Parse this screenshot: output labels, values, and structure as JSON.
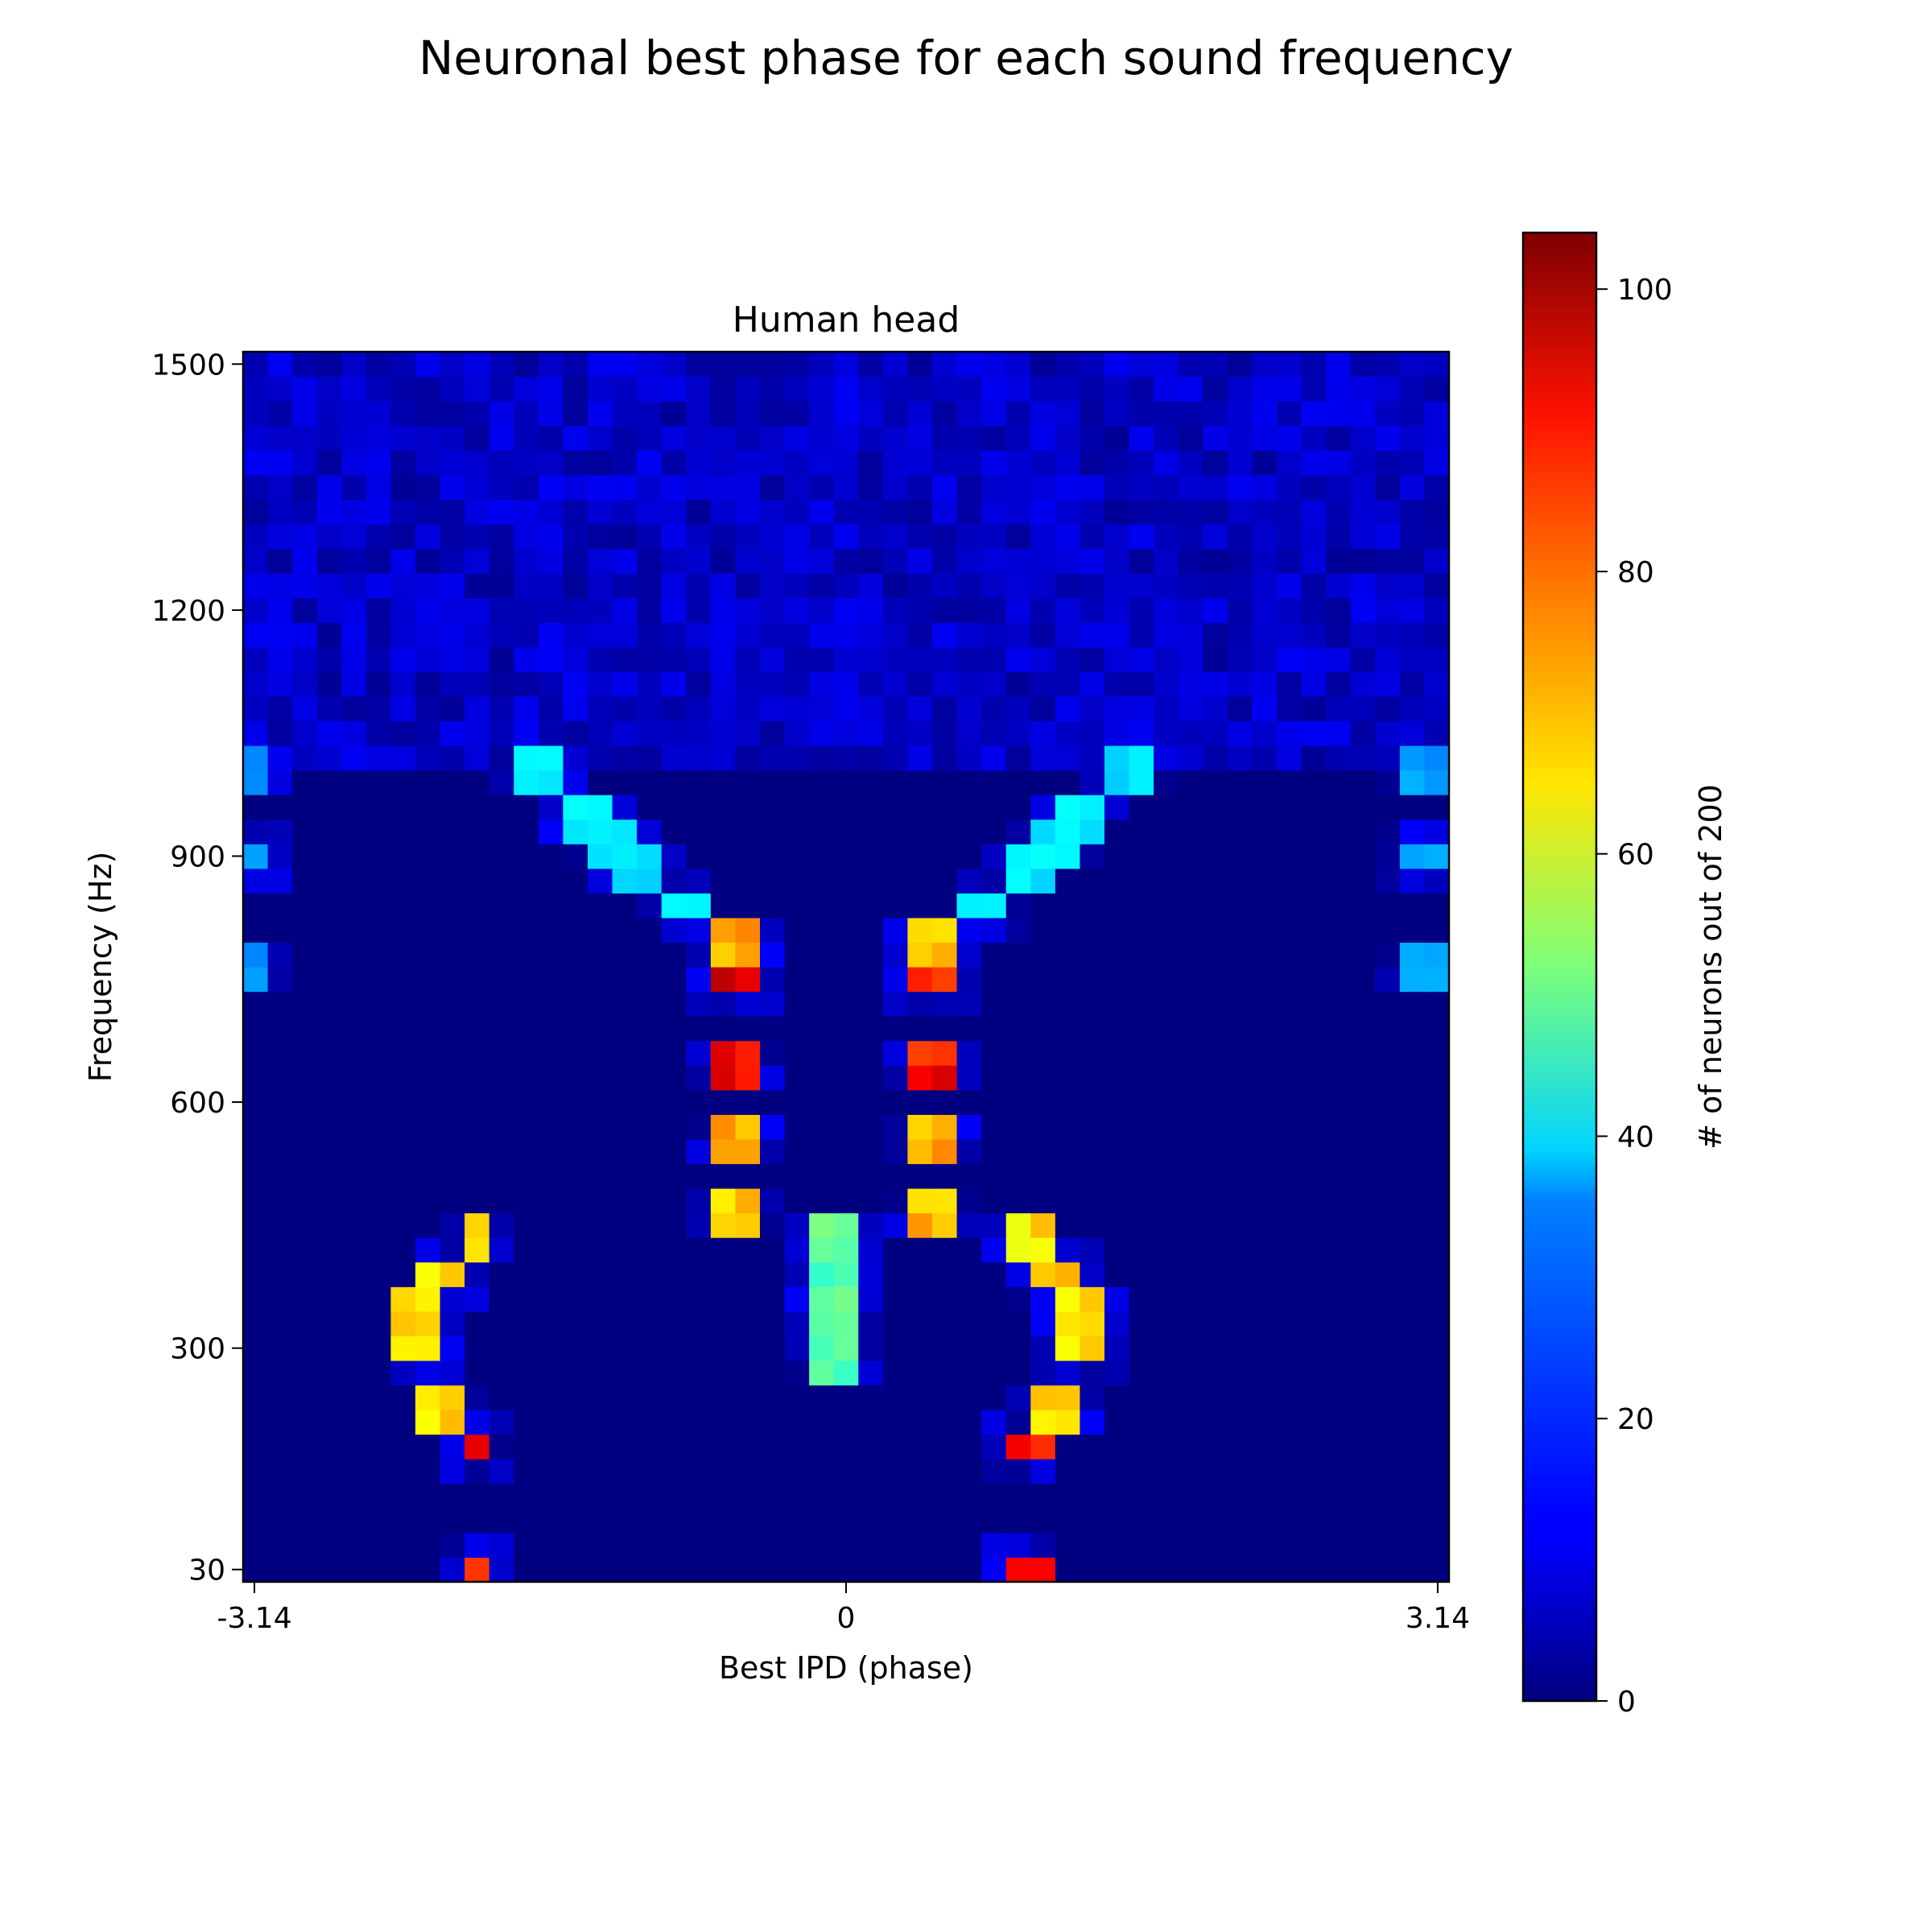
{
  "figure_title": "Neuronal best phase for each sound frequency",
  "chart_data": {
    "type": "heatmap",
    "title": "Human head",
    "xlabel": "Best IPD (phase)",
    "ylabel": "Frequency (Hz)",
    "x_ticks": [
      "-3.14",
      "0",
      "3.14"
    ],
    "x_tick_values": [
      -3.14,
      0,
      3.14
    ],
    "y_ticks": [
      "30",
      "300",
      "600",
      "900",
      "1200",
      "1500"
    ],
    "y_tick_values": [
      30,
      300,
      600,
      900,
      1200,
      1500
    ],
    "xlim": [
      -3.2,
      3.2
    ],
    "ylim": [
      15,
      1515
    ],
    "n_phase_bins": 49,
    "n_frequency_bins": 50,
    "colormap": "jet",
    "colorbar": {
      "label": "# of neurons out of 200",
      "ticks": [
        "0",
        "20",
        "40",
        "60",
        "80",
        "100"
      ],
      "tick_values": [
        0,
        20,
        40,
        60,
        80,
        100
      ],
      "range": [
        0,
        104
      ]
    },
    "ridges": [
      {
        "name": "low_left",
        "points": [
          [
            30,
            -1.93
          ],
          [
            180,
            -1.93
          ],
          [
            230,
            -2.07
          ],
          [
            300,
            -2.2
          ],
          [
            350,
            -2.2
          ],
          [
            390,
            -2.07
          ],
          [
            440,
            -1.93
          ]
        ]
      },
      {
        "name": "low_right",
        "points": [
          [
            30,
            1.04
          ],
          [
            180,
            1.04
          ],
          [
            230,
            1.18
          ],
          [
            300,
            1.31
          ],
          [
            350,
            1.31
          ],
          [
            390,
            1.18
          ],
          [
            440,
            1.04
          ]
        ]
      },
      {
        "name": "low_center",
        "points": [
          [
            290,
            0.0
          ],
          [
            330,
            0.0
          ],
          [
            380,
            0.0
          ],
          [
            440,
            0.0
          ]
        ]
      },
      {
        "name": "mid_left",
        "points": [
          [
            470,
            -0.52
          ],
          [
            550,
            -0.52
          ],
          [
            650,
            -0.52
          ],
          [
            750,
            -0.52
          ],
          [
            800,
            -0.52
          ]
        ]
      },
      {
        "name": "mid_right",
        "points": [
          [
            470,
            0.52
          ],
          [
            550,
            0.52
          ],
          [
            650,
            0.52
          ],
          [
            750,
            0.52
          ],
          [
            800,
            0.52
          ]
        ]
      },
      {
        "name": "upper_left",
        "points": [
          [
            840,
            -0.79
          ],
          [
            880,
            -1.05
          ],
          [
            910,
            -1.18
          ],
          [
            950,
            -1.31
          ],
          [
            1000,
            -1.57
          ]
        ]
      },
      {
        "name": "upper_right",
        "points": [
          [
            840,
            0.79
          ],
          [
            880,
            1.05
          ],
          [
            910,
            1.18
          ],
          [
            950,
            1.31
          ],
          [
            1000,
            1.57
          ]
        ]
      },
      {
        "name": "edge",
        "points": [
          [
            760,
            -3.14
          ],
          [
            900,
            -3.14
          ],
          [
            1000,
            -3.14
          ],
          [
            760,
            3.14
          ],
          [
            900,
            3.14
          ],
          [
            1000,
            3.14
          ]
        ]
      }
    ],
    "peak_value": 104,
    "background_low_freq": 0,
    "background_high_freq": 8
  }
}
